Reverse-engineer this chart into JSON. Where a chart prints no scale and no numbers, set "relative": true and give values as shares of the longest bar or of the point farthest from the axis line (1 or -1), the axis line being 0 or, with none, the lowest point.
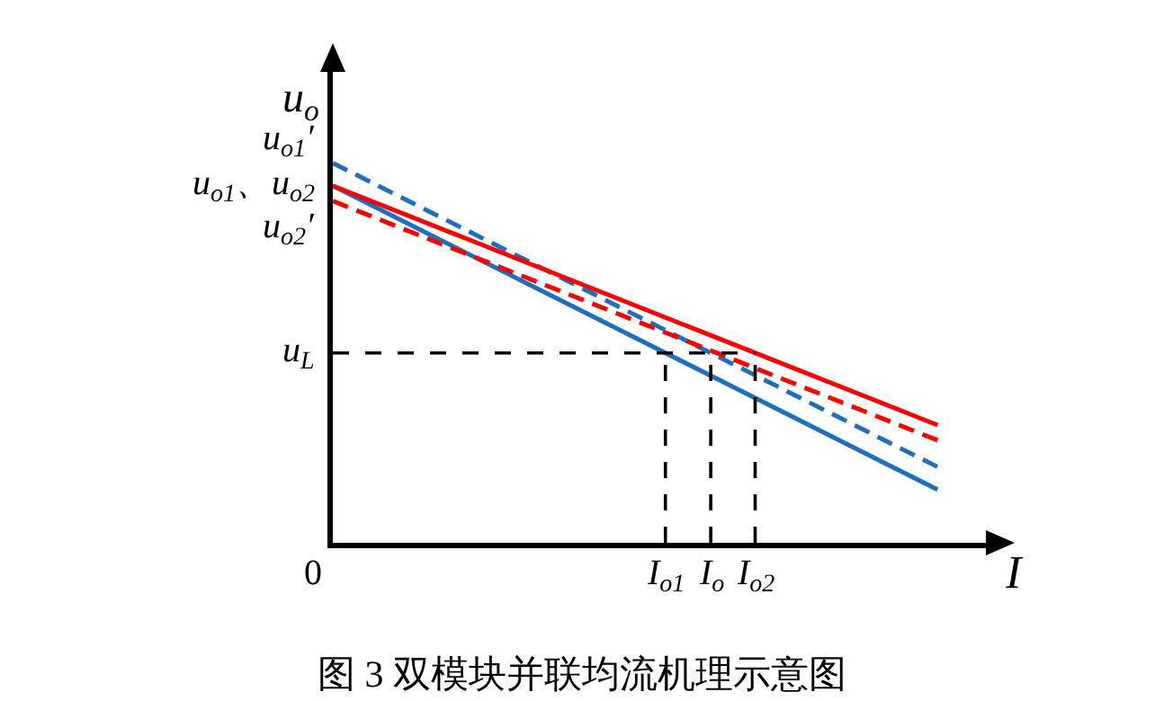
{
  "chart_data": {
    "type": "line",
    "relative": true,
    "title": "图 3 双模块并联均流机理示意图",
    "xlabel": "I",
    "ylabel": "u$_{o}$",
    "categories": [
      null,
      null
    ],
    "series": [
      {
        "color": "#1f6fc0",
        "line_style": "dashed",
        "values": [
          1,
          0.2
        ]
      },
      {
        "color": "#1f6fc0",
        "line_style": "solid",
        "values": [
          0.94,
          0.14
        ]
      },
      {
        "color": "#ff0000",
        "line_style": "solid",
        "values": [
          0.94,
          0.31
        ]
      },
      {
        "color": "#ff0000",
        "line_style": "dashed",
        "values": [
          0.9,
          0.27
        ]
      }
    ],
    "ref_lines": [
      {
        "axis": "y",
        "value": 0.5,
        "label": "u$_{L}$",
        "color": "#000000",
        "line_style": "dashed"
      }
    ],
    "annotations": [
      "u$_{o1}$′",
      "u$_{o1}$、u$_{o2}$",
      "u$_{o2}$′",
      "0",
      "I$_{o1}$",
      "I$_{o}$",
      "I$_{o2}$"
    ]
  }
}
